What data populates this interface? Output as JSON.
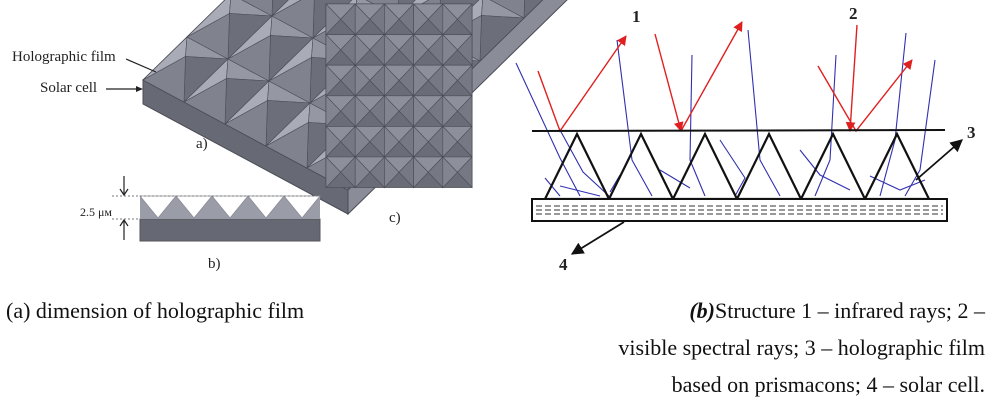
{
  "left_figure": {
    "label_film": "Holographic film",
    "label_cell": "Solar cell",
    "label_a": "a)",
    "label_b": "b)",
    "label_c": "c)",
    "dimension": "2.5 μм",
    "colors": {
      "face_light": "#9a9ca8",
      "face_mid": "#7a7c88",
      "face_dark": "#5f616c",
      "line": "#4a4c56"
    }
  },
  "right_figure": {
    "labels": {
      "n1": "1",
      "n2": "2",
      "n3": "3",
      "n4": "4"
    },
    "colors": {
      "infrared": "#e02020",
      "visible": "#3030b0",
      "outline": "#111111"
    }
  },
  "captions": {
    "a": "(a)  dimension of holographic film",
    "b_prefix": "(b)",
    "b_line1": "Structure 1 – infrared rays; 2 –",
    "b_line2": "visible spectral rays; 3 – holographic film",
    "b_line3": "based on prismacons; 4 – solar cell."
  }
}
